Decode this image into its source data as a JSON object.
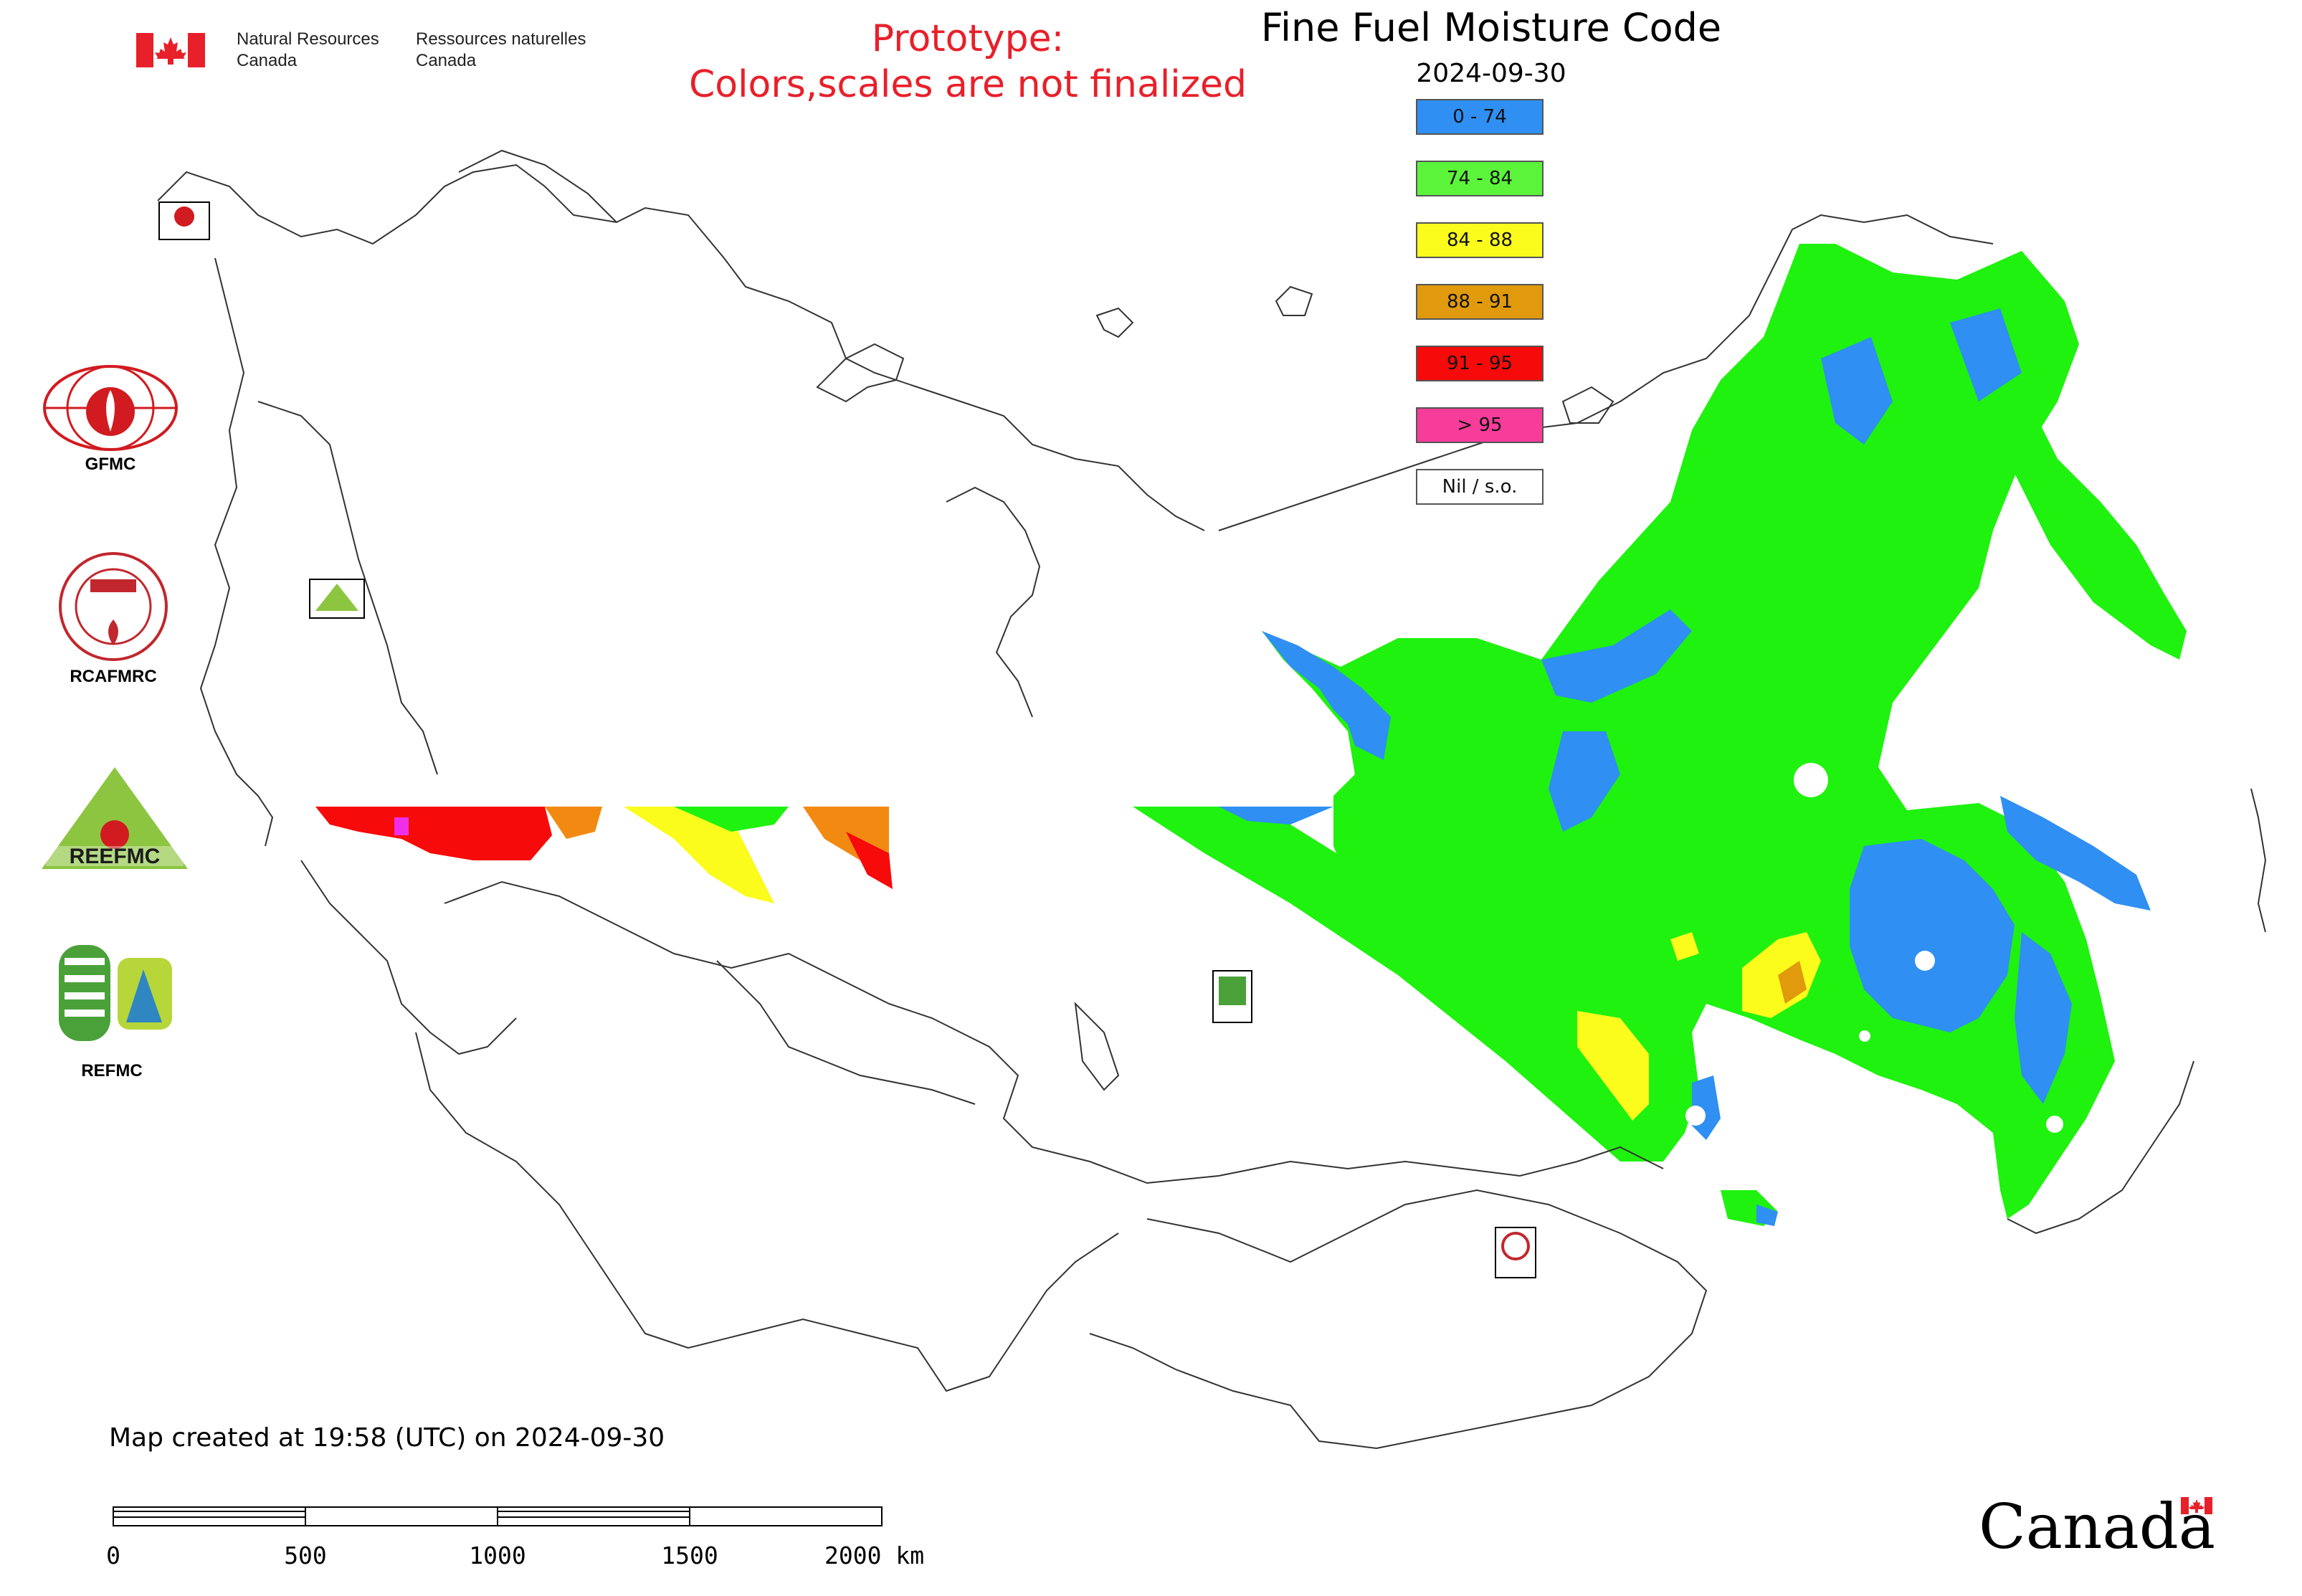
{
  "header": {
    "dept_en": "Natural Resources\nCanada",
    "dept_fr": "Ressources naturelles\nCanada",
    "prototype_line1": "Prototype:",
    "prototype_line2": "Colors,scales are not finalized",
    "title": "Fine Fuel Moisture Code",
    "date": "2024-09-30"
  },
  "legend": [
    {
      "label": "0 - 74",
      "color": "#2f8ff2"
    },
    {
      "label": "74 - 84",
      "color": "#5cf43a"
    },
    {
      "label": "84 - 88",
      "color": "#fbfb1c"
    },
    {
      "label": "88 - 91",
      "color": "#e09a0c"
    },
    {
      "label": "91 - 95",
      "color": "#f60a0a"
    },
    {
      "label": "> 95",
      "color": "#f73c9a"
    },
    {
      "label": "Nil / s.o.",
      "color": "#ffffff"
    }
  ],
  "side_logos": [
    {
      "label": "GFMC",
      "icon": "gfmc-logo"
    },
    {
      "label": "RCAFMRC",
      "icon": "rcafmrc-logo"
    },
    {
      "label": "REEFMC",
      "icon": "reefmc-logo"
    },
    {
      "label": "REFMC",
      "icon": "refmc-logo"
    }
  ],
  "footer": {
    "created": "Map created at 19:58 (UTC) on 2024-09-30",
    "scale_ticks": [
      "0",
      "500",
      "1000",
      "1500",
      "2000 km"
    ],
    "wordmark": "Canada"
  },
  "colors": {
    "prototype_text": "#e8202a",
    "border_lines": "#333333",
    "green": "#1ef20e",
    "blue": "#2f8ff2"
  }
}
